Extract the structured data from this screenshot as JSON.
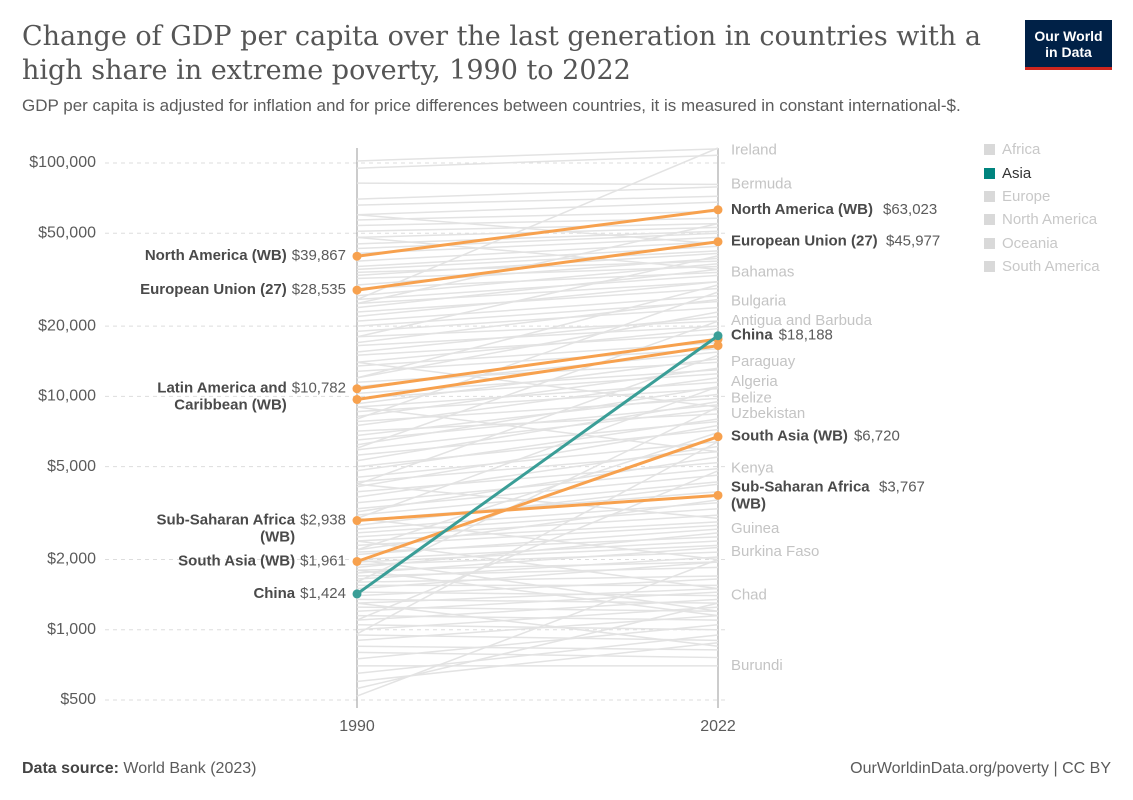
{
  "header": {
    "title": "Change of GDP per capita over the last generation in countries with a high share in extreme poverty, 1990 to 2022",
    "subtitle": "GDP per capita is adjusted for inflation and for price differences between countries, it is measured in constant international-$.",
    "logo_line1": "Our World",
    "logo_line2": "in Data"
  },
  "footer": {
    "source_label": "Data source:",
    "source_value": "World Bank (2023)",
    "link": "OurWorldinData.org/poverty | CC BY"
  },
  "legend": {
    "items": [
      {
        "label": "Africa",
        "color": "#d9d9d9",
        "text_color": "#c8c8c8"
      },
      {
        "label": "Asia",
        "color": "#00847e",
        "text_color": "#333333"
      },
      {
        "label": "Europe",
        "color": "#d9d9d9",
        "text_color": "#c8c8c8"
      },
      {
        "label": "North America",
        "color": "#d9d9d9",
        "text_color": "#c8c8c8"
      },
      {
        "label": "Oceania",
        "color": "#d9d9d9",
        "text_color": "#c8c8c8"
      },
      {
        "label": "South America",
        "color": "#d9d9d9",
        "text_color": "#c8c8c8"
      }
    ]
  },
  "colors": {
    "asia": "#3a9e97",
    "highlight": "#f7a14e",
    "background_lines": "#e3e3e3",
    "axis_text": "#5b5b5b",
    "faded_label": "#c4c4c4"
  },
  "chart_data": {
    "type": "slope",
    "x": [
      "1990",
      "2022"
    ],
    "y_scale": "log",
    "ylim": [
      500,
      100000
    ],
    "y_ticks": [
      {
        "value": 500,
        "label": "$500"
      },
      {
        "value": 1000,
        "label": "$1,000"
      },
      {
        "value": 2000,
        "label": "$2,000"
      },
      {
        "value": 5000,
        "label": "$5,000"
      },
      {
        "value": 10000,
        "label": "$10,000"
      },
      {
        "value": 20000,
        "label": "$20,000"
      },
      {
        "value": 50000,
        "label": "$50,000"
      },
      {
        "value": 100000,
        "label": "$100,000"
      }
    ],
    "highlighted_series": [
      {
        "name": "North America (WB)",
        "start": 39867,
        "end": 63023,
        "start_label": "$39,867",
        "end_label": "$63,023",
        "group": "highlight"
      },
      {
        "name": "European Union (27)",
        "start": 28535,
        "end": 45977,
        "start_label": "$28,535",
        "end_label": "$45,977",
        "group": "highlight"
      },
      {
        "name": "Latin America and Caribbean (WB)",
        "start": 10782,
        "end": 17600,
        "start_label": "$10,782",
        "end_label": "",
        "group": "highlight"
      },
      {
        "name": "",
        "start": 9700,
        "end": 16500,
        "start_label": "",
        "end_label": "",
        "group": "highlight"
      },
      {
        "name": "Sub-Saharan Africa (WB)",
        "start": 2938,
        "end": 3767,
        "start_label": "$2,938",
        "end_label": "$3,767",
        "group": "highlight"
      },
      {
        "name": "South Asia (WB)",
        "start": 1961,
        "end": 6720,
        "start_label": "$1,961",
        "end_label": "$6,720",
        "group": "highlight"
      },
      {
        "name": "China",
        "start": 1424,
        "end": 18188,
        "start_label": "$1,424",
        "end_label": "$18,188",
        "group": "asia"
      }
    ],
    "faded_end_labels": [
      {
        "name": "Ireland",
        "value": 113000
      },
      {
        "name": "Bermuda",
        "value": 81000
      },
      {
        "name": "Bahamas",
        "value": 34000
      },
      {
        "name": "Bulgaria",
        "value": 25500
      },
      {
        "name": "Antigua and Barbuda",
        "value": 21000
      },
      {
        "name": "Paraguay",
        "value": 14000
      },
      {
        "name": "Algeria",
        "value": 11500
      },
      {
        "name": "Belize",
        "value": 9800
      },
      {
        "name": "Uzbekistan",
        "value": 8400
      },
      {
        "name": "Kenya",
        "value": 4900
      },
      {
        "name": "Guinea",
        "value": 2700
      },
      {
        "name": "Burkina Faso",
        "value": 2150
      },
      {
        "name": "Chad",
        "value": 1400
      },
      {
        "name": "Burundi",
        "value": 700
      }
    ],
    "background_lines": [
      [
        102000,
        115000
      ],
      [
        95000,
        108000
      ],
      [
        82000,
        81000
      ],
      [
        70000,
        79000
      ],
      [
        66000,
        72000
      ],
      [
        60000,
        68000
      ],
      [
        57000,
        62000
      ],
      [
        54000,
        58000
      ],
      [
        51000,
        55000
      ],
      [
        48000,
        53000
      ],
      [
        45000,
        51000
      ],
      [
        43000,
        50000
      ],
      [
        41000,
        48000
      ],
      [
        38000,
        46000
      ],
      [
        36000,
        44000
      ],
      [
        35000,
        42000
      ],
      [
        34000,
        38000
      ],
      [
        33000,
        41000
      ],
      [
        32000,
        36000
      ],
      [
        30000,
        39000
      ],
      [
        29000,
        34000
      ],
      [
        27000,
        37000
      ],
      [
        26000,
        33000
      ],
      [
        25000,
        31000
      ],
      [
        24000,
        35000
      ],
      [
        23000,
        29000
      ],
      [
        22000,
        31000
      ],
      [
        21000,
        27000
      ],
      [
        20000,
        25500
      ],
      [
        19000,
        24000
      ],
      [
        18000,
        21000
      ],
      [
        17000,
        26000
      ],
      [
        16500,
        20000
      ],
      [
        15500,
        22000
      ],
      [
        15000,
        18500
      ],
      [
        14000,
        19500
      ],
      [
        13500,
        17000
      ],
      [
        12800,
        16000
      ],
      [
        12000,
        23000
      ],
      [
        11500,
        14000
      ],
      [
        11000,
        15500
      ],
      [
        10300,
        13000
      ],
      [
        9800,
        12500
      ],
      [
        9300,
        14500
      ],
      [
        9000,
        11500
      ],
      [
        8600,
        10800
      ],
      [
        8200,
        13200
      ],
      [
        7800,
        9800
      ],
      [
        7500,
        12000
      ],
      [
        7100,
        8400
      ],
      [
        6800,
        10200
      ],
      [
        6500,
        9200
      ],
      [
        6200,
        11000
      ],
      [
        5900,
        8800
      ],
      [
        5600,
        7800
      ],
      [
        5300,
        9500
      ],
      [
        5000,
        7200
      ],
      [
        4800,
        8000
      ],
      [
        4500,
        6400
      ],
      [
        4300,
        5800
      ],
      [
        4100,
        7500
      ],
      [
        3900,
        5200
      ],
      [
        3700,
        6100
      ],
      [
        3500,
        4900
      ],
      [
        3300,
        4600
      ],
      [
        3200,
        5500
      ],
      [
        3100,
        4300
      ],
      [
        2950,
        3900
      ],
      [
        2800,
        4200
      ],
      [
        2700,
        3500
      ],
      [
        2600,
        3300
      ],
      [
        2500,
        3100
      ],
      [
        2400,
        2900
      ],
      [
        2300,
        2800
      ],
      [
        2200,
        3600
      ],
      [
        2150,
        2500
      ],
      [
        2100,
        2700
      ],
      [
        2000,
        2400
      ],
      [
        1950,
        2300
      ],
      [
        1900,
        2150
      ],
      [
        1850,
        2600
      ],
      [
        1800,
        1950
      ],
      [
        1750,
        2250
      ],
      [
        1700,
        1850
      ],
      [
        1650,
        2050
      ],
      [
        1600,
        1700
      ],
      [
        1550,
        1550
      ],
      [
        1500,
        1950
      ],
      [
        1450,
        1400
      ],
      [
        1400,
        1650
      ],
      [
        1350,
        1300
      ],
      [
        1300,
        1500
      ],
      [
        1250,
        1200
      ],
      [
        1200,
        1450
      ],
      [
        1150,
        1100
      ],
      [
        1100,
        1350
      ],
      [
        1050,
        1000
      ],
      [
        1000,
        1250
      ],
      [
        950,
        900
      ],
      [
        900,
        1150
      ],
      [
        850,
        820
      ],
      [
        800,
        760
      ],
      [
        750,
        1050
      ],
      [
        700,
        700
      ],
      [
        650,
        950
      ],
      [
        600,
        880
      ],
      [
        560,
        1300
      ],
      [
        520,
        2000
      ],
      [
        960,
        6400
      ],
      [
        1100,
        4800
      ],
      [
        1600,
        9000
      ],
      [
        2200,
        7000
      ],
      [
        3000,
        11000
      ],
      [
        4200,
        15000
      ],
      [
        6000,
        21000
      ],
      [
        8000,
        28000
      ],
      [
        12000,
        30000
      ],
      [
        18000,
        40000
      ],
      [
        25000,
        55000
      ],
      [
        26000,
        118000
      ],
      [
        48000,
        35000
      ],
      [
        60000,
        45000
      ],
      [
        14000,
        9000
      ],
      [
        9000,
        5800
      ],
      [
        4200,
        3000
      ],
      [
        3000,
        2000
      ],
      [
        2400,
        1500
      ],
      [
        1800,
        1150
      ],
      [
        1300,
        850
      ],
      [
        2000,
        1200
      ]
    ]
  }
}
